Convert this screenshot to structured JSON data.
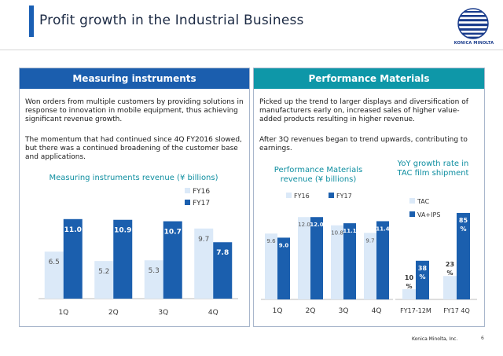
{
  "slide": {
    "title": "Profit growth in the Industrial Business",
    "page_number": "6"
  },
  "brand": {
    "logo_text": "KONICA MINOLTA",
    "footer": "Konica Minolta, Inc."
  },
  "left_panel": {
    "header": "Measuring instruments",
    "paragraph1": "Won orders from multiple customers by providing solutions in response to innovation in mobile equipment, thus achieving significant revenue growth.",
    "paragraph2": "The momentum that had continued since 4Q FY2016 slowed, but there was a continued broadening of the customer base and applications."
  },
  "right_panel": {
    "header": "Performance Materials",
    "paragraph1": "Picked up the trend to larger displays and diversification of manufacturers early on, increased sales of higher value-added products resulting in higher revenue.",
    "paragraph2": " After 3Q revenues began to trend upwards, contributing to earnings."
  },
  "colors": {
    "fy16": "#dbe9f8",
    "fy17": "#1b5fae",
    "tac": "#dbe9f8",
    "va_ips": "#1b5fae",
    "teal": "#0e8ea0"
  },
  "chart_data": [
    {
      "type": "bar",
      "title": "Measuring instruments revenue (¥ billions)",
      "categories": [
        "1Q",
        "2Q",
        "3Q",
        "4Q"
      ],
      "series": [
        {
          "name": "FY16",
          "values": [
            6.5,
            5.2,
            5.3,
            9.7
          ]
        },
        {
          "name": "FY17",
          "values": [
            11.0,
            10.9,
            10.7,
            7.8
          ]
        }
      ],
      "data_labels": {
        "FY16": [
          "6.5",
          "5.2",
          "5.3",
          "9.7"
        ],
        "FY17": [
          "11.0",
          "10.9",
          "10.7",
          "7.8"
        ]
      },
      "ylim": [
        0,
        12.5
      ],
      "grid": false,
      "legend": "top-right"
    },
    {
      "type": "bar",
      "title": "Performance Materials revenue (¥ billions)",
      "categories": [
        "1Q",
        "2Q",
        "3Q",
        "4Q"
      ],
      "series": [
        {
          "name": "FY16",
          "values": [
            9.6,
            12.0,
            10.8,
            9.7
          ]
        },
        {
          "name": "FY17",
          "values": [
            9.0,
            12.0,
            11.1,
            11.4
          ]
        }
      ],
      "data_labels": {
        "FY16": [
          "9.6",
          "12.0",
          "10.8",
          "9.7"
        ],
        "FY17": [
          "9.0",
          "12.0",
          "11.1",
          "11.4"
        ]
      },
      "ylim": [
        0,
        13.4
      ],
      "grid": false,
      "legend": "top"
    },
    {
      "type": "bar",
      "title": "YoY growth rate in TAC film shipment",
      "categories": [
        "FY17-12M",
        "FY17 4Q"
      ],
      "series": [
        {
          "name": "TAC",
          "values": [
            10,
            23
          ]
        },
        {
          "name": "VA+IPS",
          "values": [
            38,
            85
          ]
        }
      ],
      "data_labels": {
        "TAC": [
          "10\n%",
          "23\n%"
        ],
        "VA+IPS": [
          "38\n%",
          "85\n%"
        ]
      },
      "ylim": [
        0,
        95
      ],
      "grid": false,
      "legend": "top-left"
    }
  ]
}
